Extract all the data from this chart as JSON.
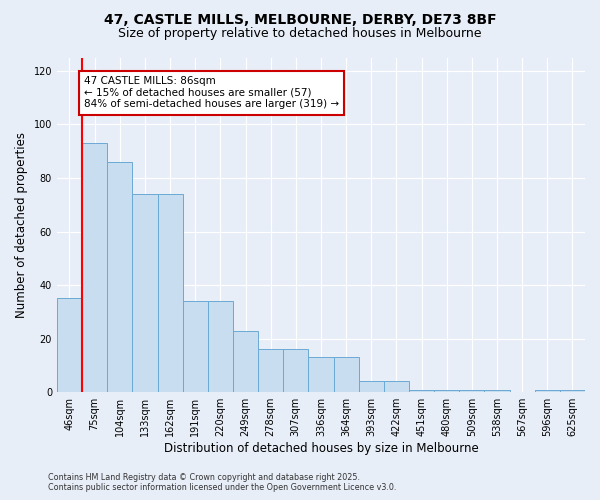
{
  "title_line1": "47, CASTLE MILLS, MELBOURNE, DERBY, DE73 8BF",
  "title_line2": "Size of property relative to detached houses in Melbourne",
  "xlabel": "Distribution of detached houses by size in Melbourne",
  "ylabel": "Number of detached properties",
  "categories": [
    "46sqm",
    "75sqm",
    "104sqm",
    "133sqm",
    "162sqm",
    "191sqm",
    "220sqm",
    "249sqm",
    "278sqm",
    "307sqm",
    "336sqm",
    "364sqm",
    "393sqm",
    "422sqm",
    "451sqm",
    "480sqm",
    "509sqm",
    "538sqm",
    "567sqm",
    "596sqm",
    "625sqm"
  ],
  "values": [
    35,
    93,
    86,
    74,
    74,
    34,
    34,
    23,
    16,
    16,
    13,
    13,
    4,
    4,
    1,
    1,
    1,
    1,
    0,
    1,
    1
  ],
  "bar_color": "#c9ddf0",
  "bar_edge_color": "#6aaad4",
  "red_line_x": 0.5,
  "annotation_text": "47 CASTLE MILLS: 86sqm\n← 15% of detached houses are smaller (57)\n84% of semi-detached houses are larger (319) →",
  "annotation_box_facecolor": "#ffffff",
  "annotation_box_edgecolor": "#cc0000",
  "ylim": [
    0,
    125
  ],
  "yticks": [
    0,
    20,
    40,
    60,
    80,
    100,
    120
  ],
  "background_color": "#e8eef8",
  "grid_color": "#ffffff",
  "title_fontsize": 10,
  "subtitle_fontsize": 9,
  "tick_fontsize": 7,
  "ylabel_fontsize": 8.5,
  "xlabel_fontsize": 8.5,
  "annotation_fontsize": 7.5,
  "footer_line1": "Contains HM Land Registry data © Crown copyright and database right 2025.",
  "footer_line2": "Contains public sector information licensed under the Open Government Licence v3.0."
}
